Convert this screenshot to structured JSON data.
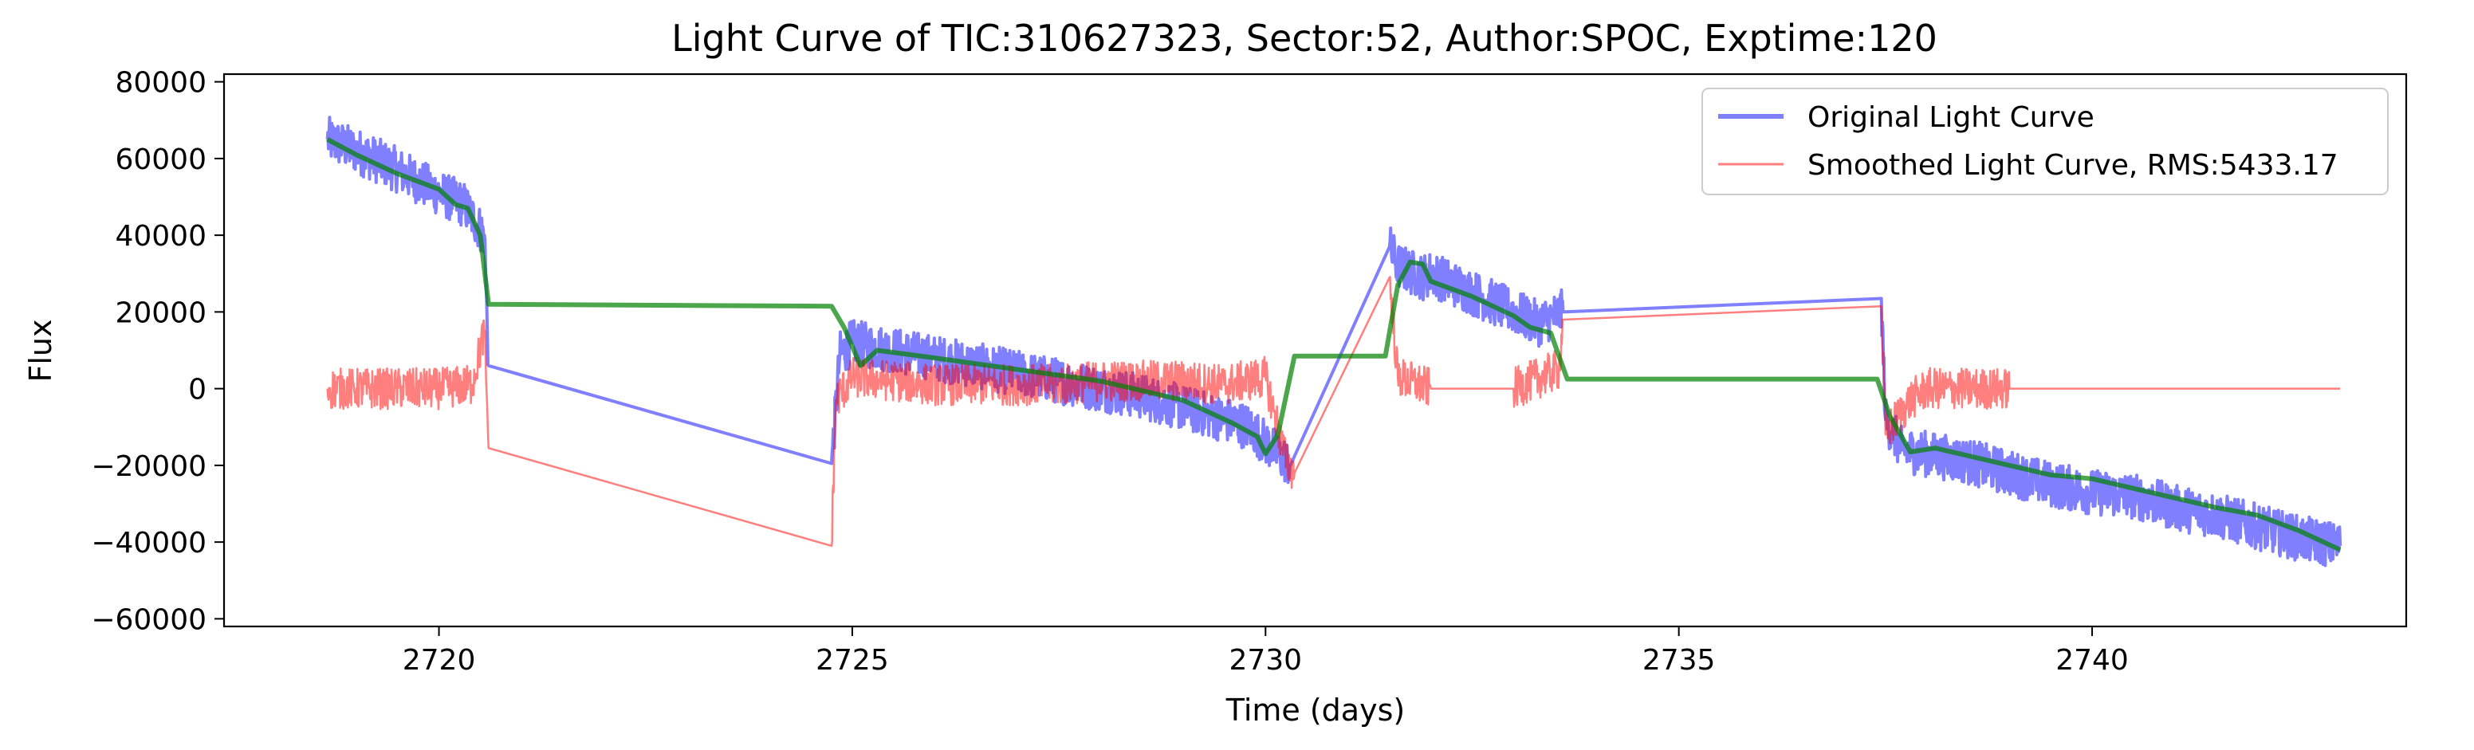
{
  "chart_data": {
    "type": "line",
    "title": "Light Curve of TIC:310627323, Sector:52, Author:SPOC, Exptime:120",
    "xlabel": "Time (days)",
    "ylabel": "Flux",
    "xlim": [
      2717.4,
      2743.8
    ],
    "ylim": [
      -62000,
      82000
    ],
    "x_ticks": [
      2720,
      2725,
      2730,
      2735,
      2740
    ],
    "x_tick_labels": [
      "2720",
      "2725",
      "2730",
      "2735",
      "2740"
    ],
    "y_ticks": [
      -60000,
      -40000,
      -20000,
      0,
      20000,
      40000,
      60000,
      80000
    ],
    "y_tick_labels": [
      "−60000",
      "−40000",
      "−20000",
      "0",
      "20000",
      "40000",
      "60000",
      "80000"
    ],
    "grid": false,
    "legend_position": "top-right",
    "series": [
      {
        "name": "Original Light Curve",
        "color": "#0000ff",
        "x": [
          2718.65,
          2719.0,
          2719.5,
          2720.0,
          2720.3,
          2720.55,
          2720.6,
          2724.75,
          2724.85,
          2725.0,
          2725.5,
          2726.0,
          2726.5,
          2727.0,
          2727.5,
          2728.0,
          2728.5,
          2729.0,
          2729.5,
          2729.8,
          2730.0,
          2730.3,
          2731.5,
          2731.6,
          2731.9,
          2732.0,
          2732.5,
          2733.0,
          2733.3,
          2733.6,
          2737.45,
          2737.5,
          2737.7,
          2738.0,
          2738.5,
          2739.0,
          2739.5,
          2740.0,
          2740.5,
          2741.0,
          2741.5,
          2742.0,
          2742.5,
          2743.0
        ],
        "values": [
          65000,
          62000,
          57000,
          51000,
          48000,
          40000,
          6000,
          -19500,
          9000,
          12000,
          10000,
          8000,
          6000,
          4000,
          2000,
          0,
          -2000,
          -5000,
          -8000,
          -10000,
          -14000,
          -20000,
          37000,
          32000,
          29000,
          30000,
          25000,
          20000,
          17000,
          20000,
          23500,
          -8000,
          -16000,
          -17000,
          -19000,
          -22000,
          -25000,
          -27000,
          -28000,
          -31000,
          -33000,
          -36000,
          -39000,
          -41000
        ],
        "noise_amplitude": 6000,
        "line_width": 4
      },
      {
        "name": "Smoothed Light Curve, RMS:5433.17",
        "color": "#ff0000",
        "x": [
          2718.65,
          2719.0,
          2719.5,
          2720.0,
          2720.4,
          2720.55,
          2720.6,
          2724.75,
          2724.8,
          2725.0,
          2725.5,
          2726.0,
          2726.5,
          2727.0,
          2727.5,
          2728.0,
          2728.5,
          2729.0,
          2729.5,
          2730.0,
          2730.25,
          2730.35,
          2731.5,
          2731.6,
          2732.0,
          2733.0,
          2733.55,
          2733.6,
          2737.45,
          2737.5,
          2737.8,
          2738.0,
          2738.5,
          2739.0,
          2740.0,
          2741.0,
          2742.0,
          2743.0
        ],
        "values": [
          0,
          0,
          0,
          0,
          1000,
          15000,
          -15500,
          -41000,
          -3000,
          3000,
          2000,
          1000,
          1000,
          1000,
          1000,
          2000,
          2000,
          2000,
          1000,
          3000,
          -19000,
          -22000,
          29000,
          3000,
          0,
          0,
          5000,
          18000,
          21500,
          -12000,
          -3000,
          0,
          0,
          0,
          0,
          0,
          0,
          0
        ],
        "noise_amplitude": 5400,
        "line_width": 2.5
      },
      {
        "name": "",
        "color": "#008000",
        "x": [
          2718.65,
          2719.0,
          2719.5,
          2720.0,
          2720.2,
          2720.35,
          2720.5,
          2720.6,
          2724.75,
          2724.9,
          2725.1,
          2725.3,
          2726.0,
          2727.0,
          2728.0,
          2729.0,
          2729.6,
          2729.9,
          2730.0,
          2730.15,
          2730.35,
          2731.45,
          2731.6,
          2731.75,
          2731.9,
          2732.0,
          2732.5,
          2733.0,
          2733.2,
          2733.45,
          2733.65,
          2737.4,
          2737.55,
          2737.8,
          2738.1,
          2738.5,
          2739.0,
          2739.5,
          2740.0,
          2740.5,
          2741.0,
          2741.5,
          2742.0,
          2742.5,
          2743.0
        ],
        "values": [
          65000,
          61000,
          56000,
          52000,
          48000,
          47000,
          40000,
          22000,
          21500,
          16000,
          6000,
          10000,
          8000,
          5000,
          2000,
          -3000,
          -9000,
          -12500,
          -17000,
          -12000,
          8500,
          8500,
          27000,
          33000,
          32500,
          28000,
          24000,
          19000,
          16000,
          14500,
          2500,
          2500,
          -7000,
          -16500,
          -15500,
          -17500,
          -20000,
          -22500,
          -23500,
          -26000,
          -28500,
          -31000,
          -33000,
          -37000,
          -42000
        ],
        "noise_amplitude": 0,
        "line_width": 6
      }
    ]
  },
  "colors": {
    "original": "#0000ff",
    "smoothed": "#ff0000",
    "trend": "#008000"
  }
}
